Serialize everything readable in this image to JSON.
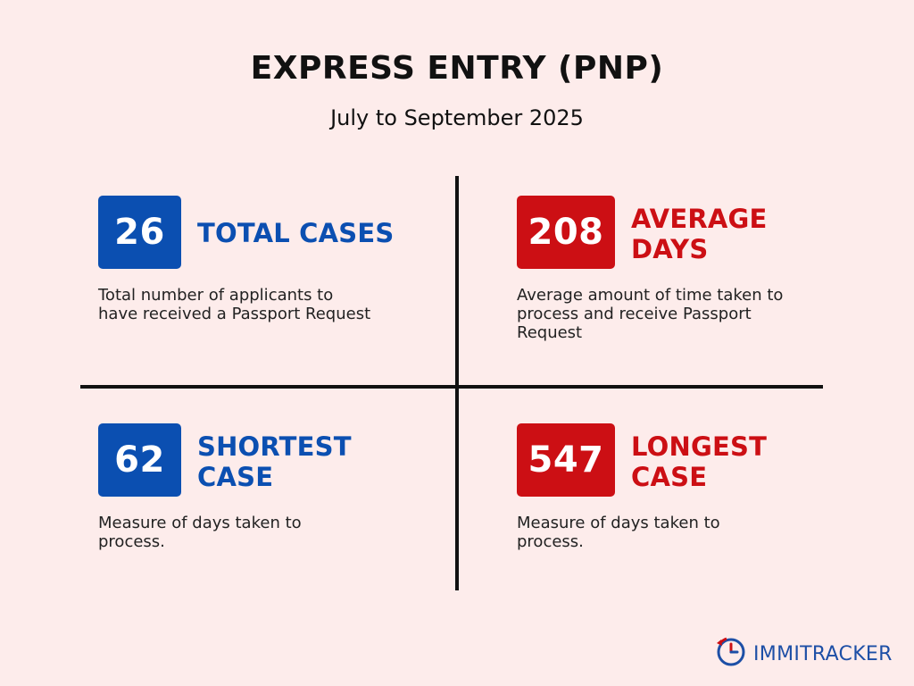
{
  "header": {
    "title": "EXPRESS ENTRY (PNP)",
    "subtitle": "July to September 2025"
  },
  "colors": {
    "background": "#fdeceb",
    "blue": "#0b4fb1",
    "red": "#cc0f14",
    "text": "#111111"
  },
  "stats": [
    {
      "value": "26",
      "label_line1": "TOTAL CASES",
      "label_line2": "",
      "description": "Total number of applicants to have received a Passport Request",
      "color": "#0b4fb1"
    },
    {
      "value": "208",
      "label_line1": "AVERAGE",
      "label_line2": "DAYS",
      "description": "Average amount of time taken to process and receive Passport Request",
      "color": "#cc0f14"
    },
    {
      "value": "62",
      "label_line1": "SHORTEST",
      "label_line2": "CASE",
      "description": "Measure of days taken to process.",
      "color": "#0b4fb1"
    },
    {
      "value": "547",
      "label_line1": "LONGEST",
      "label_line2": "CASE",
      "description": "Measure of days taken to process.",
      "color": "#cc0f14"
    }
  ],
  "logo": {
    "icon": "clock-icon",
    "text_part1": "IMMI",
    "text_part2": "TRACKER"
  }
}
